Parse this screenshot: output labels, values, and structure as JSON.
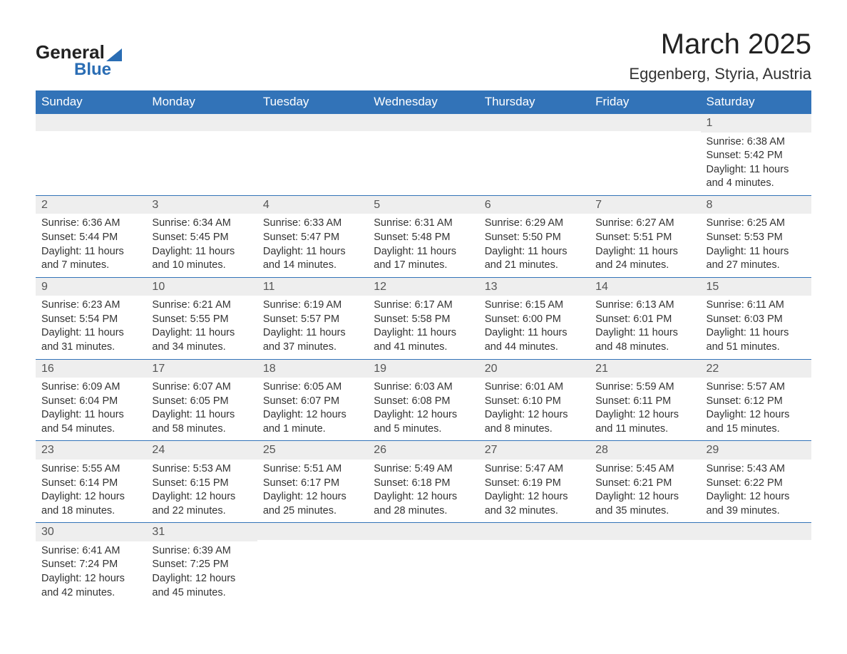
{
  "logo": {
    "text_general": "General",
    "text_blue": "Blue"
  },
  "title": "March 2025",
  "location": "Eggenberg, Styria, Austria",
  "colors": {
    "header_bg": "#3273b8",
    "header_text": "#ffffff",
    "daynum_bg": "#eeeeee",
    "border": "#3273b8",
    "body_text": "#333333"
  },
  "day_headers": [
    "Sunday",
    "Monday",
    "Tuesday",
    "Wednesday",
    "Thursday",
    "Friday",
    "Saturday"
  ],
  "weeks": [
    [
      null,
      null,
      null,
      null,
      null,
      null,
      {
        "n": "1",
        "sunrise": "Sunrise: 6:38 AM",
        "sunset": "Sunset: 5:42 PM",
        "daylight": "Daylight: 11 hours and 4 minutes."
      }
    ],
    [
      {
        "n": "2",
        "sunrise": "Sunrise: 6:36 AM",
        "sunset": "Sunset: 5:44 PM",
        "daylight": "Daylight: 11 hours and 7 minutes."
      },
      {
        "n": "3",
        "sunrise": "Sunrise: 6:34 AM",
        "sunset": "Sunset: 5:45 PM",
        "daylight": "Daylight: 11 hours and 10 minutes."
      },
      {
        "n": "4",
        "sunrise": "Sunrise: 6:33 AM",
        "sunset": "Sunset: 5:47 PM",
        "daylight": "Daylight: 11 hours and 14 minutes."
      },
      {
        "n": "5",
        "sunrise": "Sunrise: 6:31 AM",
        "sunset": "Sunset: 5:48 PM",
        "daylight": "Daylight: 11 hours and 17 minutes."
      },
      {
        "n": "6",
        "sunrise": "Sunrise: 6:29 AM",
        "sunset": "Sunset: 5:50 PM",
        "daylight": "Daylight: 11 hours and 21 minutes."
      },
      {
        "n": "7",
        "sunrise": "Sunrise: 6:27 AM",
        "sunset": "Sunset: 5:51 PM",
        "daylight": "Daylight: 11 hours and 24 minutes."
      },
      {
        "n": "8",
        "sunrise": "Sunrise: 6:25 AM",
        "sunset": "Sunset: 5:53 PM",
        "daylight": "Daylight: 11 hours and 27 minutes."
      }
    ],
    [
      {
        "n": "9",
        "sunrise": "Sunrise: 6:23 AM",
        "sunset": "Sunset: 5:54 PM",
        "daylight": "Daylight: 11 hours and 31 minutes."
      },
      {
        "n": "10",
        "sunrise": "Sunrise: 6:21 AM",
        "sunset": "Sunset: 5:55 PM",
        "daylight": "Daylight: 11 hours and 34 minutes."
      },
      {
        "n": "11",
        "sunrise": "Sunrise: 6:19 AM",
        "sunset": "Sunset: 5:57 PM",
        "daylight": "Daylight: 11 hours and 37 minutes."
      },
      {
        "n": "12",
        "sunrise": "Sunrise: 6:17 AM",
        "sunset": "Sunset: 5:58 PM",
        "daylight": "Daylight: 11 hours and 41 minutes."
      },
      {
        "n": "13",
        "sunrise": "Sunrise: 6:15 AM",
        "sunset": "Sunset: 6:00 PM",
        "daylight": "Daylight: 11 hours and 44 minutes."
      },
      {
        "n": "14",
        "sunrise": "Sunrise: 6:13 AM",
        "sunset": "Sunset: 6:01 PM",
        "daylight": "Daylight: 11 hours and 48 minutes."
      },
      {
        "n": "15",
        "sunrise": "Sunrise: 6:11 AM",
        "sunset": "Sunset: 6:03 PM",
        "daylight": "Daylight: 11 hours and 51 minutes."
      }
    ],
    [
      {
        "n": "16",
        "sunrise": "Sunrise: 6:09 AM",
        "sunset": "Sunset: 6:04 PM",
        "daylight": "Daylight: 11 hours and 54 minutes."
      },
      {
        "n": "17",
        "sunrise": "Sunrise: 6:07 AM",
        "sunset": "Sunset: 6:05 PM",
        "daylight": "Daylight: 11 hours and 58 minutes."
      },
      {
        "n": "18",
        "sunrise": "Sunrise: 6:05 AM",
        "sunset": "Sunset: 6:07 PM",
        "daylight": "Daylight: 12 hours and 1 minute."
      },
      {
        "n": "19",
        "sunrise": "Sunrise: 6:03 AM",
        "sunset": "Sunset: 6:08 PM",
        "daylight": "Daylight: 12 hours and 5 minutes."
      },
      {
        "n": "20",
        "sunrise": "Sunrise: 6:01 AM",
        "sunset": "Sunset: 6:10 PM",
        "daylight": "Daylight: 12 hours and 8 minutes."
      },
      {
        "n": "21",
        "sunrise": "Sunrise: 5:59 AM",
        "sunset": "Sunset: 6:11 PM",
        "daylight": "Daylight: 12 hours and 11 minutes."
      },
      {
        "n": "22",
        "sunrise": "Sunrise: 5:57 AM",
        "sunset": "Sunset: 6:12 PM",
        "daylight": "Daylight: 12 hours and 15 minutes."
      }
    ],
    [
      {
        "n": "23",
        "sunrise": "Sunrise: 5:55 AM",
        "sunset": "Sunset: 6:14 PM",
        "daylight": "Daylight: 12 hours and 18 minutes."
      },
      {
        "n": "24",
        "sunrise": "Sunrise: 5:53 AM",
        "sunset": "Sunset: 6:15 PM",
        "daylight": "Daylight: 12 hours and 22 minutes."
      },
      {
        "n": "25",
        "sunrise": "Sunrise: 5:51 AM",
        "sunset": "Sunset: 6:17 PM",
        "daylight": "Daylight: 12 hours and 25 minutes."
      },
      {
        "n": "26",
        "sunrise": "Sunrise: 5:49 AM",
        "sunset": "Sunset: 6:18 PM",
        "daylight": "Daylight: 12 hours and 28 minutes."
      },
      {
        "n": "27",
        "sunrise": "Sunrise: 5:47 AM",
        "sunset": "Sunset: 6:19 PM",
        "daylight": "Daylight: 12 hours and 32 minutes."
      },
      {
        "n": "28",
        "sunrise": "Sunrise: 5:45 AM",
        "sunset": "Sunset: 6:21 PM",
        "daylight": "Daylight: 12 hours and 35 minutes."
      },
      {
        "n": "29",
        "sunrise": "Sunrise: 5:43 AM",
        "sunset": "Sunset: 6:22 PM",
        "daylight": "Daylight: 12 hours and 39 minutes."
      }
    ],
    [
      {
        "n": "30",
        "sunrise": "Sunrise: 6:41 AM",
        "sunset": "Sunset: 7:24 PM",
        "daylight": "Daylight: 12 hours and 42 minutes."
      },
      {
        "n": "31",
        "sunrise": "Sunrise: 6:39 AM",
        "sunset": "Sunset: 7:25 PM",
        "daylight": "Daylight: 12 hours and 45 minutes."
      },
      null,
      null,
      null,
      null,
      null
    ]
  ]
}
